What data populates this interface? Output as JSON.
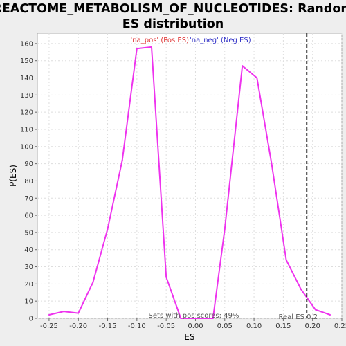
{
  "chart_data": {
    "type": "line",
    "title_lines": [
      "REACTOME_METABOLISM_OF_NUCLEOTIDES: Random",
      "ES distribution"
    ],
    "xlabel": "ES",
    "ylabel": "P(ES)",
    "xlim": [
      -0.27,
      0.25
    ],
    "ylim": [
      0,
      166
    ],
    "x_ticks": [
      -0.25,
      -0.2,
      -0.15,
      -0.1,
      -0.05,
      0.0,
      0.05,
      0.1,
      0.15,
      0.2,
      0.25
    ],
    "x_tick_labels": [
      "-0.25",
      "-0.20",
      "-0.15",
      "-0.10",
      "-0.05",
      "0.00",
      "0.05",
      "0.10",
      "0.15",
      "0.20",
      "0.25"
    ],
    "y_ticks": [
      0,
      10,
      20,
      30,
      40,
      50,
      60,
      70,
      80,
      90,
      100,
      110,
      120,
      130,
      140,
      150,
      160
    ],
    "grid": true,
    "legend": [
      {
        "label": "'na_pos' (Pos ES)",
        "color": "#e03030"
      },
      {
        "label": "'na_neg' (Neg ES)",
        "color": "#3535c8"
      }
    ],
    "series": [
      {
        "color": "#ee33ee",
        "points": [
          [
            -0.25,
            2
          ],
          [
            -0.225,
            4
          ],
          [
            -0.2,
            3
          ],
          [
            -0.175,
            21
          ],
          [
            -0.15,
            52
          ],
          [
            -0.125,
            92
          ],
          [
            -0.1,
            157
          ],
          [
            -0.075,
            158
          ],
          [
            -0.05,
            24
          ],
          [
            -0.025,
            0
          ],
          [
            0.0,
            0
          ],
          [
            0.03,
            0
          ],
          [
            0.05,
            52
          ],
          [
            0.08,
            147
          ],
          [
            0.105,
            140
          ],
          [
            0.13,
            90
          ],
          [
            0.155,
            34
          ],
          [
            0.18,
            17
          ],
          [
            0.205,
            5
          ],
          [
            0.23,
            2
          ]
        ]
      }
    ],
    "real_es": {
      "x": 0.19,
      "label": "Real ES 0.2",
      "color": "#333333"
    },
    "annotation": "Sets with pos scores: 49%"
  }
}
